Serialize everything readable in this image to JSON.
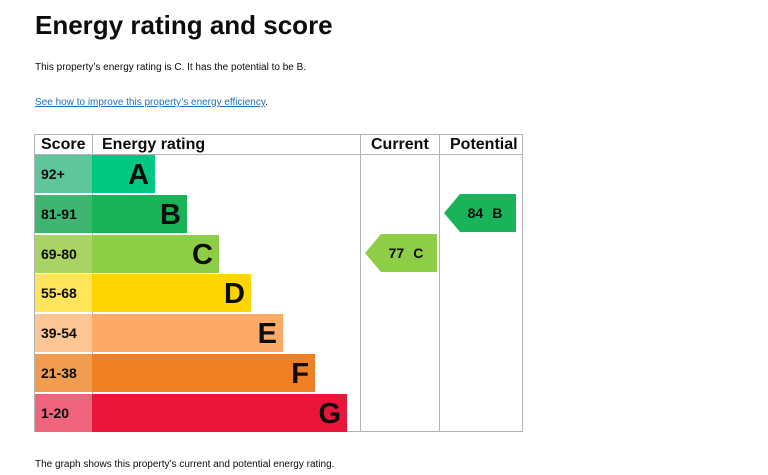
{
  "page": {
    "title": "Energy rating and score",
    "summary": "This property’s energy rating is C. It has the potential to be B.",
    "link_text": "See how to improve this property’s energy efficiency",
    "link_suffix": ".",
    "footer": "The graph shows this property’s current and potential energy rating."
  },
  "table": {
    "headers": {
      "score": "Score",
      "rating": "Energy rating",
      "current": "Current",
      "potential": "Potential"
    },
    "bands": [
      {
        "range": "92+",
        "letter": "A",
        "score_bg": "#5fc59b",
        "bar_color": "#00c781"
      },
      {
        "range": "81-91",
        "letter": "B",
        "score_bg": "#40b571",
        "bar_color": "#19b459"
      },
      {
        "range": "69-80",
        "letter": "C",
        "score_bg": "#a9d364",
        "bar_color": "#8dce46"
      },
      {
        "range": "55-68",
        "letter": "D",
        "score_bg": "#ffe45c",
        "bar_color": "#ffd500"
      },
      {
        "range": "39-54",
        "letter": "E",
        "score_bg": "#fbc594",
        "bar_color": "#fcaa65"
      },
      {
        "range": "21-38",
        "letter": "F",
        "score_bg": "#f29c4f",
        "bar_color": "#ef8023"
      },
      {
        "range": "1-20",
        "letter": "G",
        "score_bg": "#f0647e",
        "bar_color": "#e9153b"
      }
    ],
    "current": {
      "score": "77",
      "letter": "C",
      "color": "#8dce46"
    },
    "potential": {
      "score": "84",
      "letter": "B",
      "color": "#19b459"
    }
  }
}
